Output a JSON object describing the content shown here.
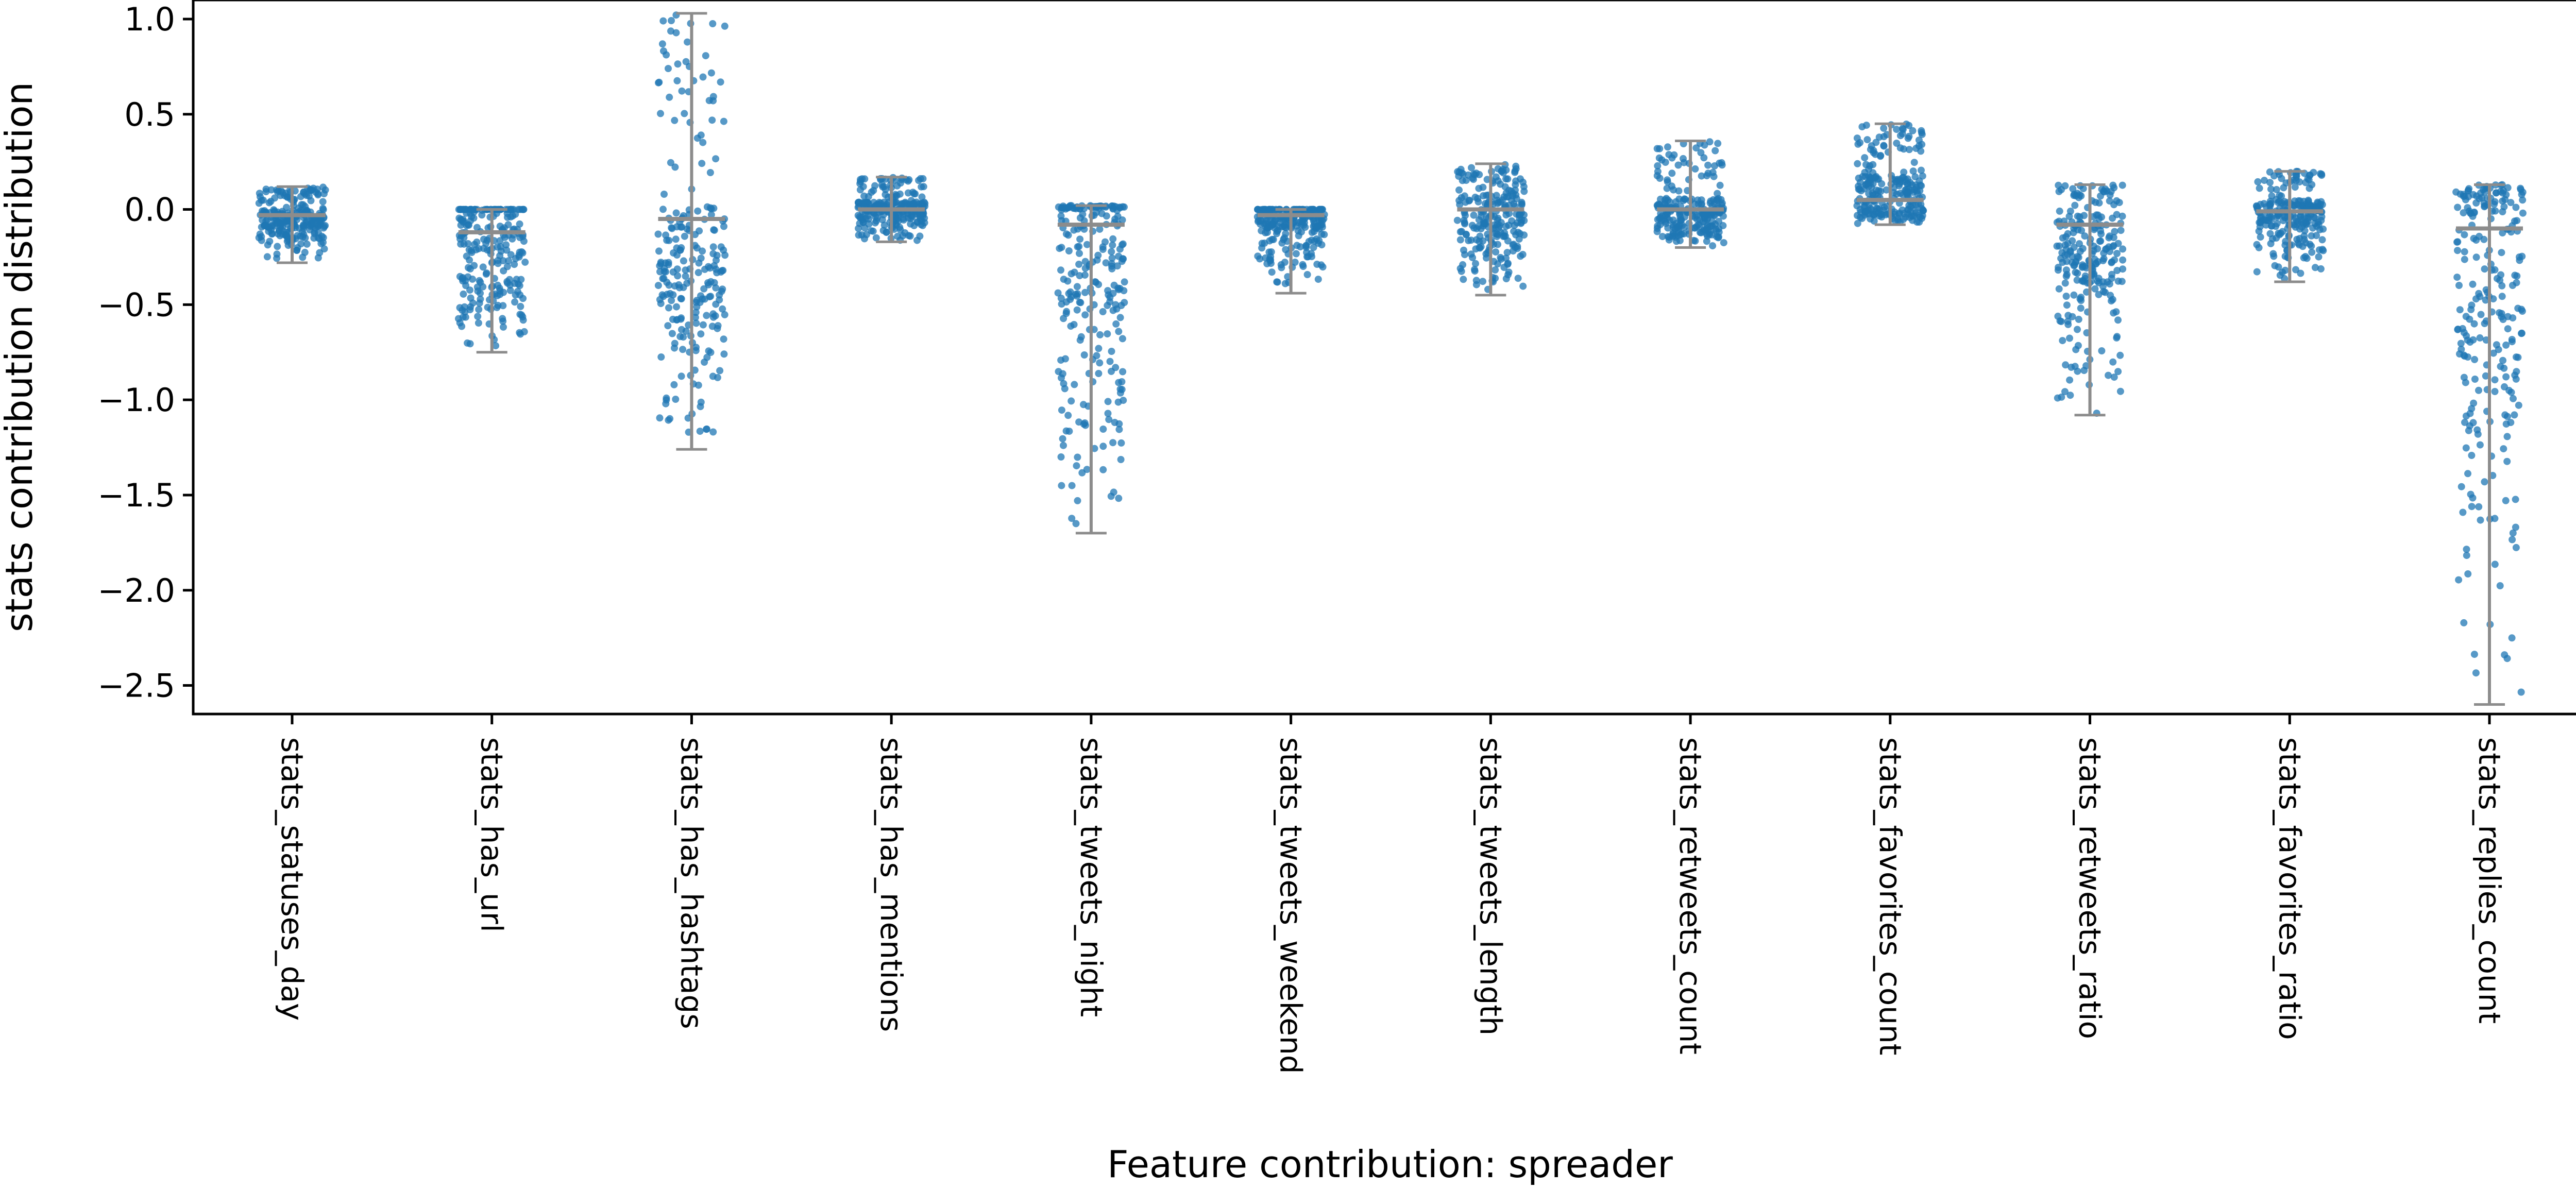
{
  "chart_data": {
    "type": "scatter",
    "subtype": "strip plot with box plot overlay",
    "xlabel": "Feature contribution: spreader",
    "ylabel": "stats contribution distribution",
    "ylim": [
      -2.65,
      1.1
    ],
    "yticks": [
      1.0,
      0.5,
      0.0,
      -0.5,
      -1.0,
      -1.5,
      -2.0,
      -2.5
    ],
    "ytick_labels": [
      "1.0",
      "0.5",
      "0.0",
      "−0.5",
      "−1.0",
      "−1.5",
      "−2.0",
      "−2.5"
    ],
    "point_color": "#1f77b4",
    "box_color": "#8c8c8c",
    "grid": false,
    "categories": [
      "stats_statuses_day",
      "stats_has_url",
      "stats_has_hashtags",
      "stats_has_mentions",
      "stats_tweets_night",
      "stats_tweets_weekend",
      "stats_tweets_length",
      "stats_retweets_count",
      "stats_favorites_count",
      "stats_retweets_ratio",
      "stats_favorites_ratio",
      "stats_replies_count"
    ],
    "distributions": [
      {
        "category": "stats_statuses_day",
        "min": -0.28,
        "q1": -0.1,
        "median": -0.03,
        "q3": 0.0,
        "max": 0.12
      },
      {
        "category": "stats_has_url",
        "min": -0.75,
        "q1": -0.38,
        "median": -0.12,
        "q3": 0.0,
        "max": 0.0
      },
      {
        "category": "stats_has_hashtags",
        "min": -1.26,
        "q1": -0.45,
        "median": -0.05,
        "q3": 0.02,
        "max": 1.03
      },
      {
        "category": "stats_has_mentions",
        "min": -0.17,
        "q1": -0.03,
        "median": 0.0,
        "q3": 0.04,
        "max": 0.17
      },
      {
        "category": "stats_tweets_night",
        "min": -1.7,
        "q1": -0.6,
        "median": -0.08,
        "q3": 0.0,
        "max": 0.02
      },
      {
        "category": "stats_tweets_weekend",
        "min": -0.44,
        "q1": -0.1,
        "median": -0.03,
        "q3": 0.0,
        "max": 0.0
      },
      {
        "category": "stats_tweets_length",
        "min": -0.45,
        "q1": -0.15,
        "median": 0.0,
        "q3": 0.08,
        "max": 0.24
      },
      {
        "category": "stats_retweets_count",
        "min": -0.2,
        "q1": -0.08,
        "median": 0.0,
        "q3": 0.06,
        "max": 0.36
      },
      {
        "category": "stats_favorites_count",
        "min": -0.08,
        "q1": 0.0,
        "median": 0.05,
        "q3": 0.18,
        "max": 0.45
      },
      {
        "category": "stats_retweets_ratio",
        "min": -1.08,
        "q1": -0.4,
        "median": -0.08,
        "q3": 0.0,
        "max": 0.13
      },
      {
        "category": "stats_favorites_ratio",
        "min": -0.38,
        "q1": -0.08,
        "median": -0.01,
        "q3": 0.05,
        "max": 0.2
      },
      {
        "category": "stats_replies_count",
        "min": -2.6,
        "q1": -0.9,
        "median": -0.1,
        "q3": 0.0,
        "max": 0.13
      }
    ]
  }
}
